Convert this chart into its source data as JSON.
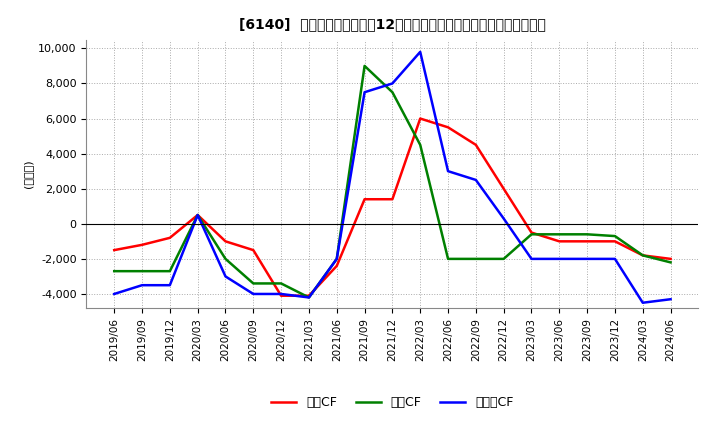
{
  "title": "[6140]  キャッシュフローの12か月移動合計の対前年同期増減額の推移",
  "ylabel": "(百万円)",
  "ylim": [
    -4800,
    10500
  ],
  "yticks": [
    -4000,
    -2000,
    0,
    2000,
    4000,
    6000,
    8000,
    10000
  ],
  "dates": [
    "2019/06",
    "2019/09",
    "2019/12",
    "2020/03",
    "2020/06",
    "2020/09",
    "2020/12",
    "2021/03",
    "2021/06",
    "2021/09",
    "2021/12",
    "2022/03",
    "2022/06",
    "2022/09",
    "2022/12",
    "2023/03",
    "2023/06",
    "2023/09",
    "2023/12",
    "2024/03",
    "2024/06"
  ],
  "eigyo_cf": [
    -1500,
    -1200,
    -800,
    500,
    -1000,
    -1500,
    -4100,
    -4100,
    -2400,
    1400,
    1400,
    6000,
    5500,
    4500,
    2000,
    -500,
    -1000,
    -1000,
    -1000,
    -1800,
    -2000
  ],
  "toshi_cf": [
    -2700,
    -2700,
    -2700,
    500,
    -2000,
    -3400,
    -3400,
    -4200,
    -2000,
    9000,
    7500,
    4500,
    -2000,
    -2000,
    -2000,
    -600,
    -600,
    -600,
    -700,
    -1800,
    -2200
  ],
  "free_cf": [
    -4000,
    -3500,
    -3500,
    500,
    -3000,
    -4000,
    -4000,
    -4200,
    -2000,
    7500,
    8000,
    9800,
    3000,
    2500,
    300,
    -2000,
    -2000,
    -2000,
    -2000,
    -4500,
    -4300
  ],
  "eigyo_color": "#ff0000",
  "toshi_color": "#008000",
  "free_color": "#0000ff",
  "legend_labels": [
    "営業CF",
    "投資CF",
    "フリーCF"
  ]
}
